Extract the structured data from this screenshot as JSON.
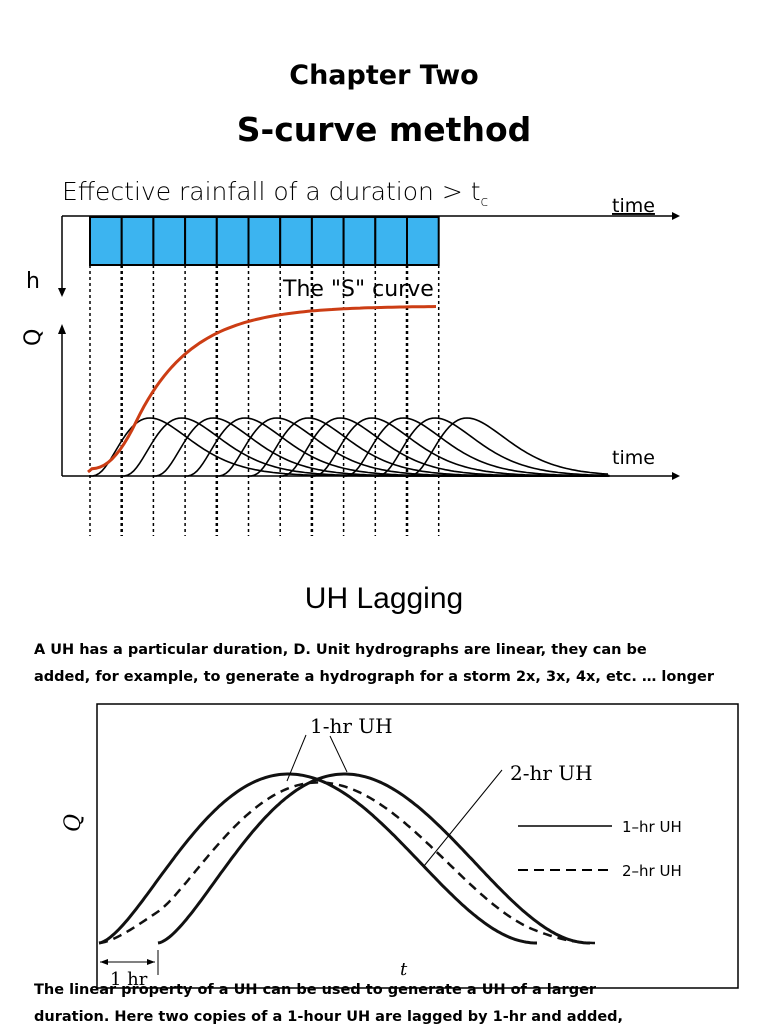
{
  "page": {
    "chapter_title": "Chapter Two",
    "method_title": "S-curve method",
    "section_title": "UH Lagging",
    "para1_line1": "A UH has a particular duration, D. Unit hydrographs  are linear, they can be",
    "para1_line2": "added, for example, to generate a hydrograph for a storm 2x, 3x, 4x, etc. … longer",
    "para2_line1": "The linear property of a UH can be used to generate a UH of  a larger",
    "para2_line2": "duration. Here two copies of a 1-hour UH are lagged by 1-hr and added,"
  },
  "figure1": {
    "rainfall_label": "Effective rainfall of a duration > t",
    "rainfall_subscript": "c",
    "time_top_label": "time",
    "h_label": "h",
    "q_label": "Q",
    "s_curve_label": "The \"S\" curve",
    "time_bottom_label": "time",
    "rain_block_count": 11,
    "colors": {
      "rain_block": "#3cb4f0",
      "s_curve": "#cc3d14"
    }
  },
  "figure2": {
    "uh1_label": "1-hr UH",
    "uh2_label": "2-hr UH",
    "legend_solid": "1–hr UH",
    "legend_dashed": "2–hr UH",
    "y_label": "Q",
    "x_label": "t",
    "lag_label": "1 hr"
  }
}
